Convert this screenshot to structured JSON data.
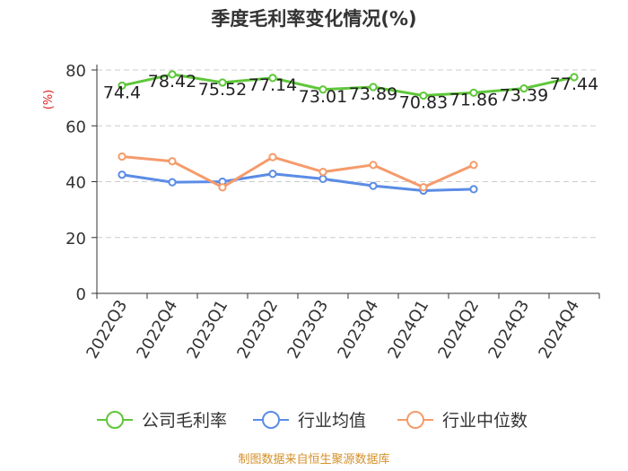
{
  "chart_data": {
    "type": "line",
    "title": "季度毛利率变化情况(%)",
    "ylabel": "(%)",
    "xlabel": "",
    "ylim": [
      0,
      80
    ],
    "yticks": [
      0,
      20,
      40,
      60,
      80
    ],
    "grid": true,
    "legend_position": "bottom",
    "categories": [
      "2022Q3",
      "2022Q4",
      "2023Q1",
      "2023Q2",
      "2023Q3",
      "2023Q4",
      "2024Q1",
      "2024Q2",
      "2024Q3",
      "2024Q4"
    ],
    "series": [
      {
        "name": "公司毛利率",
        "color": "#5fc73a",
        "values": [
          74.4,
          78.42,
          75.52,
          77.14,
          73.01,
          73.89,
          70.83,
          71.86,
          73.39,
          77.44
        ],
        "labels": [
          "74.4",
          "78.42",
          "75.52",
          "77.14",
          "73.01",
          "73.89",
          "70.83",
          "71.86",
          "73.39",
          "77.44"
        ]
      },
      {
        "name": "行业均值",
        "color": "#5b8ce6",
        "values": [
          42.5,
          39.8,
          40.0,
          42.8,
          41.0,
          38.5,
          36.8,
          37.3,
          null,
          null
        ]
      },
      {
        "name": "行业中位数",
        "color": "#f59b6b",
        "values": [
          49.0,
          47.3,
          38.0,
          48.8,
          43.5,
          46.0,
          38.0,
          46.0,
          null,
          null
        ]
      }
    ]
  },
  "source_text": "制图数据来自恒生聚源数据库"
}
